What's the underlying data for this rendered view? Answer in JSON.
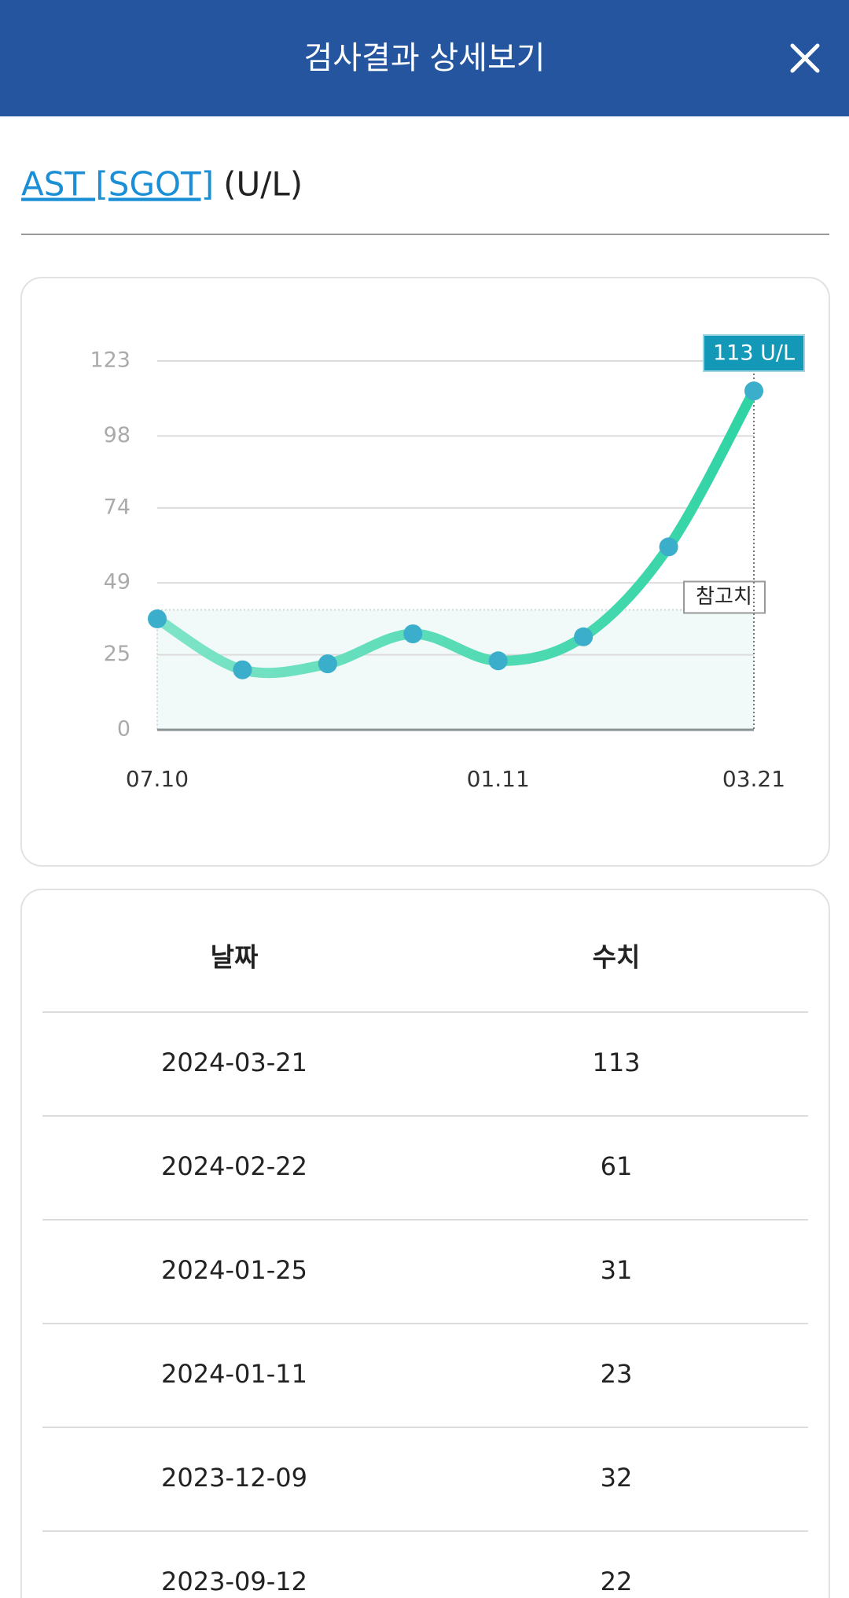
{
  "header": {
    "title": "검사결과 상세보기"
  },
  "test_name": "AST [SGOT]",
  "unit": "(U/L)",
  "chart_data": {
    "type": "line",
    "categories": [
      "07.10",
      null,
      null,
      null,
      "01.11",
      null,
      null,
      "03.21"
    ],
    "values": [
      37,
      20,
      22,
      32,
      23,
      31,
      61,
      113
    ],
    "color": "#4fdcb2",
    "marker_color": "#3aaecb",
    "ylim": [
      0,
      123
    ],
    "yticks": [
      0,
      25,
      49,
      74,
      98,
      123
    ],
    "grid": true,
    "reference": {
      "label": "참고치",
      "value": 40
    },
    "annotation": "113 U/L"
  },
  "table": {
    "header": [
      "날짜",
      "수치"
    ],
    "rows": [
      [
        "2024-03-21",
        113
      ],
      [
        "2024-02-22",
        61
      ],
      [
        "2024-01-25",
        31
      ],
      [
        "2024-01-11",
        23
      ],
      [
        "2023-12-09",
        32
      ],
      [
        "2023-09-12",
        22
      ]
    ]
  }
}
